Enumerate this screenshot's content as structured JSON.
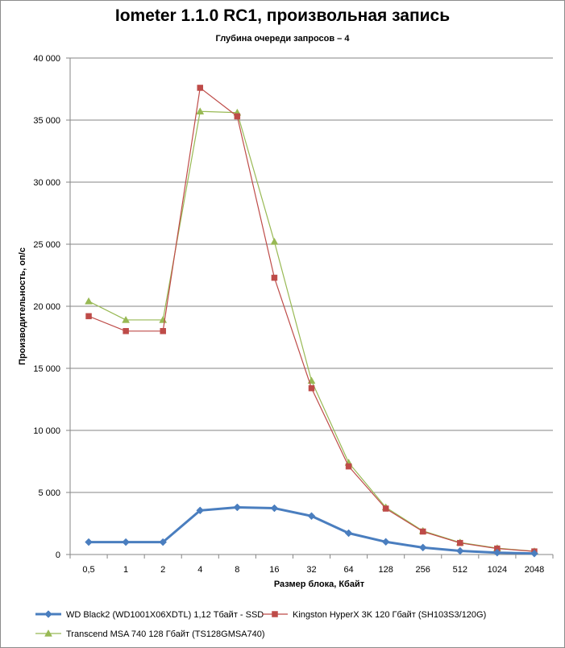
{
  "chart_data": {
    "type": "line",
    "title": "Iometer 1.1.0 RC1, произвольная запись",
    "subtitle": "Глубина очереди запросов – 4",
    "xlabel": "Размер блока, Кбайт",
    "ylabel": "Производительность, оп/с",
    "categories": [
      "0,5",
      "1",
      "2",
      "4",
      "8",
      "16",
      "32",
      "64",
      "128",
      "256",
      "512",
      "1024",
      "2048"
    ],
    "ylim": [
      0,
      40000
    ],
    "yticks": [
      0,
      5000,
      10000,
      15000,
      20000,
      25000,
      30000,
      35000,
      40000
    ],
    "ytick_labels": [
      "0",
      "5 000",
      "10 000",
      "15 000",
      "20 000",
      "25 000",
      "30 000",
      "35 000",
      "40 000"
    ],
    "grid": true,
    "legend_position": "bottom",
    "series": [
      {
        "name": "WD Black2 (WD1001X06XDTL) 1,12 Тбайт - SSD",
        "color": "#4a7ebf",
        "marker": "diamond",
        "values": [
          1000,
          1000,
          1000,
          3550,
          3800,
          3730,
          3100,
          1720,
          1020,
          560,
          290,
          150,
          80
        ]
      },
      {
        "name": "Kingston HyperX 3K 120 Гбайт (SH103S3/120G)",
        "color": "#be4b48",
        "marker": "square",
        "values": [
          19200,
          18000,
          18000,
          37600,
          35300,
          22300,
          13400,
          7100,
          3700,
          1850,
          930,
          480,
          250
        ]
      },
      {
        "name": "Transcend MSA 740 128 Гбайт (TS128GMSA740)",
        "color": "#98b954",
        "marker": "triangle",
        "values": [
          20400,
          18900,
          18900,
          35700,
          35600,
          25200,
          14000,
          7400,
          3800,
          1900,
          970,
          510,
          260
        ]
      }
    ]
  }
}
